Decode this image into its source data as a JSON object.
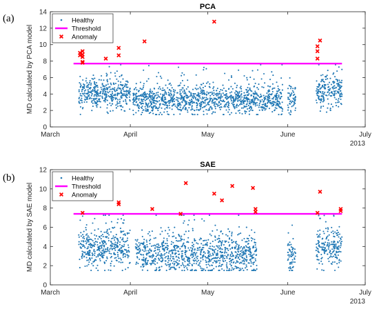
{
  "chart_data": [
    {
      "panel_label": "(a)",
      "type": "scatter",
      "title": "PCA",
      "ylabel": "MD calculated by PCA model",
      "ylim": [
        0,
        14
      ],
      "yticks": [
        0,
        2,
        4,
        6,
        8,
        10,
        12,
        14
      ],
      "xlim": [
        "2013-03-01",
        "2013-07-01"
      ],
      "xticks": [
        {
          "date": "2013-03-01",
          "label": "March"
        },
        {
          "date": "2013-04-01",
          "label": "April"
        },
        {
          "date": "2013-05-01",
          "label": "May"
        },
        {
          "date": "2013-06-01",
          "label": "June"
        },
        {
          "date": "2013-07-01",
          "label": "July"
        }
      ],
      "year_label": "2013",
      "legend": {
        "placement": "top-left",
        "entries": [
          "Healthy",
          "Threshold",
          "Anomaly"
        ]
      },
      "colors": {
        "healthy": "#1f77b4",
        "threshold": "#ff00ff",
        "anomaly": "#ff0000"
      },
      "threshold": 7.7,
      "healthy_segments": [
        {
          "start": "2013-03-12",
          "end": "2013-03-31",
          "mean": 4.0,
          "spread": 0.9
        },
        {
          "start": "2013-04-02",
          "end": "2013-05-29",
          "mean": 3.3,
          "spread": 0.85
        },
        {
          "start": "2013-06-01",
          "end": "2013-06-03",
          "mean": 3.3,
          "spread": 1.0
        },
        {
          "start": "2013-06-12",
          "end": "2013-06-21",
          "mean": 4.3,
          "spread": 1.0
        }
      ],
      "anomalies": [
        {
          "x": "2013-03-12",
          "y": 9.0
        },
        {
          "x": "2013-03-12",
          "y": 8.7
        },
        {
          "x": "2013-03-13",
          "y": 8.5
        },
        {
          "x": "2013-03-13",
          "y": 9.2
        },
        {
          "x": "2013-03-13",
          "y": 8.8
        },
        {
          "x": "2013-03-13",
          "y": 7.9
        },
        {
          "x": "2013-03-13",
          "y": 7.8
        },
        {
          "x": "2013-03-22",
          "y": 8.3
        },
        {
          "x": "2013-03-27",
          "y": 9.6
        },
        {
          "x": "2013-03-27",
          "y": 8.7
        },
        {
          "x": "2013-04-06",
          "y": 10.4
        },
        {
          "x": "2013-05-03",
          "y": 12.8
        },
        {
          "x": "2013-06-12",
          "y": 9.8
        },
        {
          "x": "2013-06-12",
          "y": 9.2
        },
        {
          "x": "2013-06-12",
          "y": 8.3
        },
        {
          "x": "2013-06-13",
          "y": 10.5
        }
      ]
    },
    {
      "panel_label": "(b)",
      "type": "scatter",
      "title": "SAE",
      "ylabel": "MD calculated by SAE model",
      "ylim": [
        0,
        12
      ],
      "yticks": [
        0,
        2,
        4,
        6,
        8,
        10,
        12
      ],
      "xlim": [
        "2013-03-01",
        "2013-07-01"
      ],
      "xticks": [
        {
          "date": "2013-03-01",
          "label": "March"
        },
        {
          "date": "2013-04-01",
          "label": "April"
        },
        {
          "date": "2013-05-01",
          "label": "May"
        },
        {
          "date": "2013-06-01",
          "label": "June"
        },
        {
          "date": "2013-07-01",
          "label": "July"
        }
      ],
      "year_label": "2013",
      "legend": {
        "placement": "top-left",
        "entries": [
          "Healthy",
          "Threshold",
          "Anomaly"
        ]
      },
      "colors": {
        "healthy": "#1f77b4",
        "threshold": "#ff00ff",
        "anomaly": "#ff0000"
      },
      "threshold": 7.4,
      "healthy_segments": [
        {
          "start": "2013-03-12",
          "end": "2013-03-31",
          "mean": 3.8,
          "spread": 1.0
        },
        {
          "start": "2013-04-03",
          "end": "2013-05-19",
          "mean": 3.3,
          "spread": 1.05
        },
        {
          "start": "2013-06-01",
          "end": "2013-06-03",
          "mean": 3.0,
          "spread": 0.9
        },
        {
          "start": "2013-06-12",
          "end": "2013-06-21",
          "mean": 3.9,
          "spread": 1.1
        }
      ],
      "anomalies": [
        {
          "x": "2013-03-13",
          "y": 7.5
        },
        {
          "x": "2013-03-27",
          "y": 8.6
        },
        {
          "x": "2013-03-27",
          "y": 8.4
        },
        {
          "x": "2013-04-09",
          "y": 7.9
        },
        {
          "x": "2013-04-20",
          "y": 7.4
        },
        {
          "x": "2013-04-22",
          "y": 10.6
        },
        {
          "x": "2013-05-03",
          "y": 9.5
        },
        {
          "x": "2013-05-06",
          "y": 8.8
        },
        {
          "x": "2013-05-10",
          "y": 10.3
        },
        {
          "x": "2013-05-18",
          "y": 10.1
        },
        {
          "x": "2013-05-19",
          "y": 7.9
        },
        {
          "x": "2013-05-19",
          "y": 7.6
        },
        {
          "x": "2013-06-12",
          "y": 7.5
        },
        {
          "x": "2013-06-13",
          "y": 9.7
        },
        {
          "x": "2013-06-21",
          "y": 7.9
        },
        {
          "x": "2013-06-21",
          "y": 7.7
        }
      ]
    }
  ]
}
